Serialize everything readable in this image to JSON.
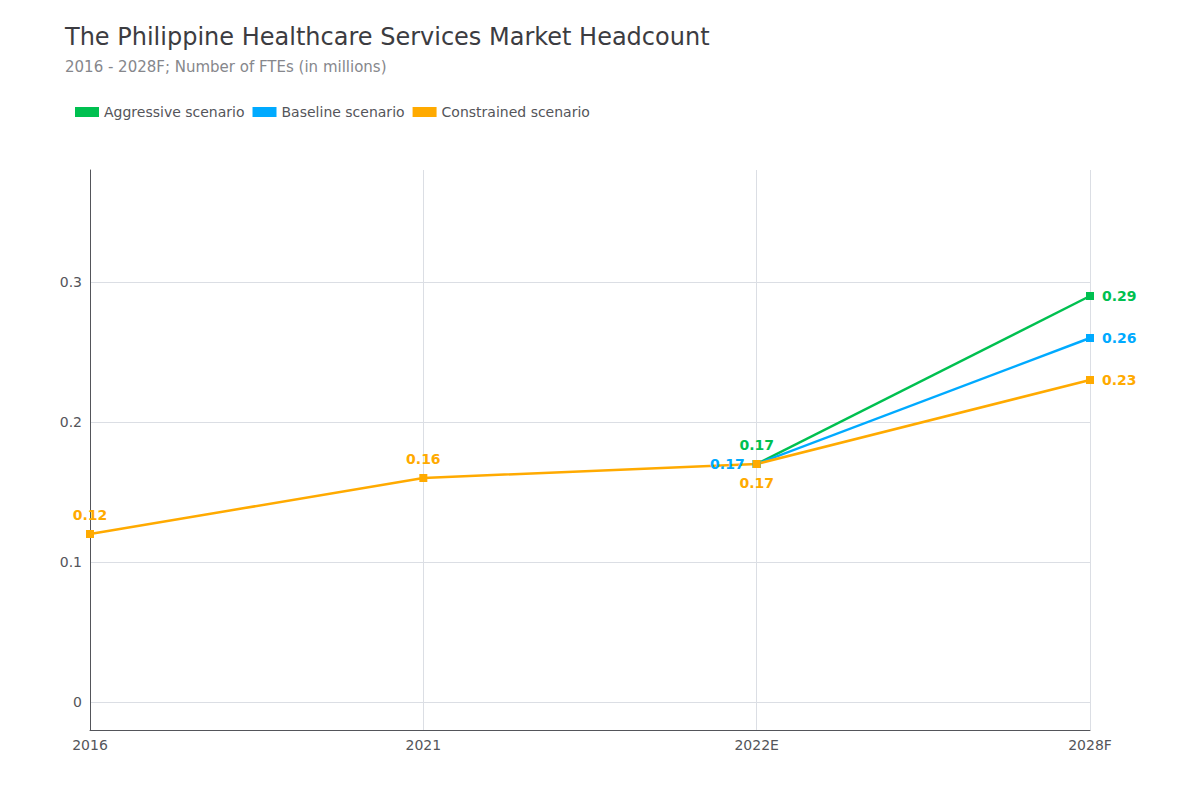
{
  "chart_data": {
    "type": "line",
    "title": "The Philippine Healthcare Services Market Headcount",
    "subtitle": "2016 - 2028F; Number of FTEs (in millions)",
    "categories": [
      "2016",
      "2021",
      "2022E",
      "2028F"
    ],
    "series": [
      {
        "name": "Aggressive scenario",
        "color": "#00c050",
        "values": [
          null,
          null,
          0.17,
          0.29
        ]
      },
      {
        "name": "Baseline scenario",
        "color": "#00aaff",
        "values": [
          null,
          null,
          0.17,
          0.26
        ]
      },
      {
        "name": "Constrained scenario",
        "color": "#ffaa00",
        "values": [
          0.12,
          0.16,
          0.17,
          0.23
        ]
      }
    ],
    "ylim": [
      -0.02,
      0.38
    ],
    "yticks": [
      0,
      0.1,
      0.2,
      0.3
    ],
    "grid": true,
    "legend": "upper left",
    "marker": "square",
    "data_labels": true
  }
}
